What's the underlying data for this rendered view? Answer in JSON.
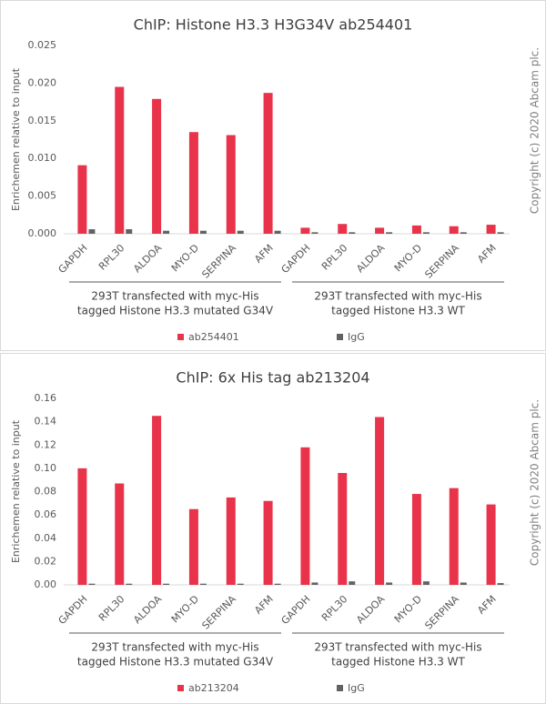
{
  "chart_data": [
    {
      "type": "bar",
      "title": "ChIP: Histone H3.3 H3G34V ab254401",
      "y_label": "Enrichemen relative to input",
      "copyright": "Copyright (c) 2020 Abcam plc.",
      "categories": [
        "GAPDH",
        "RPL30",
        "ALDOA",
        "MYO-D",
        "SERPINA",
        "AFM",
        "GAPDH",
        "RPL30",
        "ALDOA",
        "MYO-D",
        "SERPINA",
        "AFM"
      ],
      "groups": [
        [
          "293T transfected with myc-His",
          "tagged Histone H3.3 mutated G34V"
        ],
        [
          "293T transfected with myc-His",
          "tagged Histone H3.3 WT"
        ]
      ],
      "series": [
        {
          "name": "ab254401",
          "color": "#e8334a",
          "values": [
            0.0091,
            0.0195,
            0.0179,
            0.0135,
            0.0131,
            0.0187,
            0.0008,
            0.0013,
            0.0008,
            0.0011,
            0.001,
            0.0012
          ]
        },
        {
          "name": "IgG",
          "color": "#5f6462",
          "values": [
            0.0006,
            0.0006,
            0.0004,
            0.0004,
            0.0004,
            0.0004,
            0.0002,
            0.0002,
            0.0002,
            0.0002,
            0.0002,
            0.0002
          ]
        }
      ],
      "ylim": [
        0,
        0.025
      ],
      "yticks": [
        {
          "value": 0,
          "label": "0.000"
        },
        0.005,
        {
          "value": 0.01,
          "label": "0.010"
        },
        0.015,
        {
          "value": 0.02,
          "label": "0.020"
        },
        0.025
      ],
      "grid": false,
      "legend": "bottom"
    },
    {
      "type": "bar",
      "title": "ChIP: 6x His tag  ab213204",
      "y_label": "Enrichemen relative to input",
      "copyright": "Copyright (c) 2020 Abcam plc.",
      "categories": [
        "GAPDH",
        "RPL30",
        "ALDOA",
        "MYO-D",
        "SERPINA",
        "AFM",
        "GAPDH",
        "RPL30",
        "ALDOA",
        "MYO-D",
        "SERPINA",
        "AFM"
      ],
      "groups": [
        [
          "293T transfected with myc-His",
          "tagged Histone H3.3 mutated G34V"
        ],
        [
          "293T transfected with myc-His",
          "tagged Histone H3.3 WT"
        ]
      ],
      "series": [
        {
          "name": "ab213204",
          "color": "#e8334a",
          "values": [
            0.1,
            0.087,
            0.145,
            0.065,
            0.075,
            0.072,
            0.118,
            0.096,
            0.144,
            0.078,
            0.083,
            0.069
          ]
        },
        {
          "name": "IgG",
          "color": "#5f6462",
          "values": [
            0.001,
            0.001,
            0.001,
            0.001,
            0.001,
            0.001,
            0.002,
            0.003,
            0.002,
            0.003,
            0.002,
            0.0015
          ]
        }
      ],
      "ylim": [
        0,
        0.16
      ],
      "yticks": [
        {
          "value": 0,
          "label": "0.00"
        },
        0.02,
        0.04,
        0.06,
        0.08,
        {
          "value": 0.1,
          "label": "0.10"
        },
        0.12,
        0.14,
        0.16
      ],
      "grid": false,
      "legend": "bottom"
    }
  ]
}
